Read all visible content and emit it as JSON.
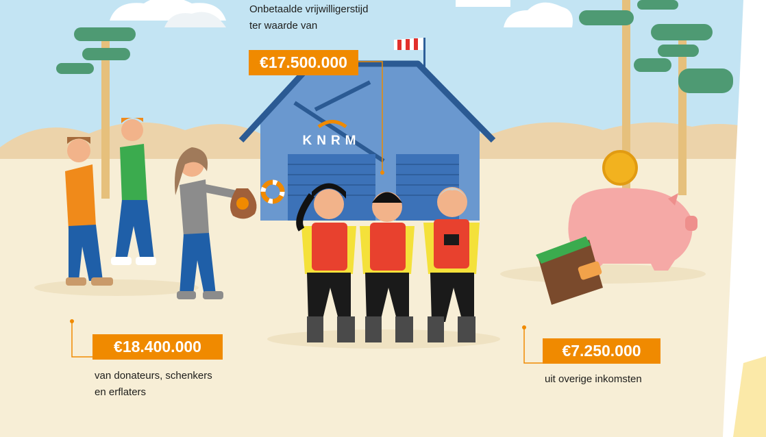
{
  "volunteer_time": {
    "label_lines": [
      "Onbetaalde vrijwilligerstijd",
      "ter waarde van"
    ],
    "amount": "€17.500.000"
  },
  "building": {
    "sign": "KNRM"
  },
  "donations": {
    "amount": "€18.400.000",
    "label_lines": [
      "van donateurs, schenkers",
      "en erflaters"
    ]
  },
  "other_income": {
    "amount": "€7.250.000",
    "label_lines": [
      "uit overige inkomsten"
    ]
  }
}
